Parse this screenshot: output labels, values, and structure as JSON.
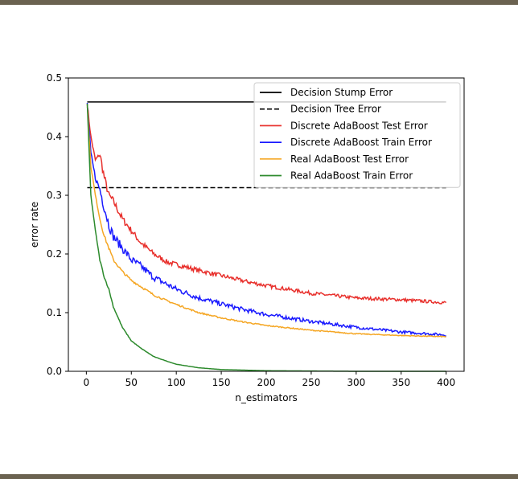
{
  "chart_data": {
    "type": "line",
    "xlabel": "n_estimators",
    "ylabel": "error rate",
    "xlim": [
      -20,
      420
    ],
    "ylim": [
      0.0,
      0.5
    ],
    "xticks": [
      0,
      50,
      100,
      150,
      200,
      250,
      300,
      350,
      400
    ],
    "xtick_labels": [
      "0",
      "50",
      "100",
      "150",
      "200",
      "250",
      "300",
      "350",
      "400"
    ],
    "yticks": [
      0.0,
      0.1,
      0.2,
      0.3,
      0.4,
      0.5
    ],
    "ytick_labels": [
      "0.0",
      "0.1",
      "0.2",
      "0.3",
      "0.4",
      "0.5"
    ],
    "grid": false,
    "legend_position": "upper-right",
    "series": [
      {
        "name": "Decision Stump Error",
        "color": "#000000",
        "style": "solid",
        "x": [
          1,
          400
        ],
        "y": [
          0.459,
          0.459
        ]
      },
      {
        "name": "Decision Tree Error",
        "color": "#000000",
        "style": "dashed",
        "x": [
          1,
          400
        ],
        "y": [
          0.313,
          0.313
        ]
      },
      {
        "name": "Discrete AdaBoost Test Error",
        "color": "#e8302c",
        "style": "solid",
        "x": [
          1,
          5,
          10,
          15,
          20,
          25,
          30,
          40,
          50,
          60,
          75,
          90,
          100,
          125,
          150,
          175,
          200,
          250,
          300,
          350,
          400
        ],
        "y": [
          0.455,
          0.4,
          0.36,
          0.37,
          0.33,
          0.3,
          0.29,
          0.26,
          0.24,
          0.22,
          0.2,
          0.186,
          0.182,
          0.172,
          0.163,
          0.154,
          0.146,
          0.133,
          0.125,
          0.122,
          0.117
        ]
      },
      {
        "name": "Discrete AdaBoost Train Error",
        "color": "#1a1aff",
        "style": "solid",
        "x": [
          1,
          5,
          10,
          15,
          20,
          25,
          30,
          40,
          50,
          60,
          75,
          90,
          100,
          125,
          150,
          175,
          200,
          250,
          300,
          350,
          400
        ],
        "y": [
          0.455,
          0.37,
          0.33,
          0.31,
          0.28,
          0.25,
          0.23,
          0.21,
          0.19,
          0.18,
          0.16,
          0.148,
          0.14,
          0.125,
          0.115,
          0.105,
          0.097,
          0.085,
          0.075,
          0.067,
          0.062
        ]
      },
      {
        "name": "Real AdaBoost Test Error",
        "color": "#f5a623",
        "style": "solid",
        "x": [
          1,
          5,
          10,
          15,
          20,
          25,
          30,
          40,
          50,
          60,
          75,
          90,
          100,
          125,
          150,
          175,
          200,
          250,
          300,
          350,
          400
        ],
        "y": [
          0.455,
          0.35,
          0.3,
          0.26,
          0.23,
          0.21,
          0.19,
          0.17,
          0.155,
          0.145,
          0.13,
          0.12,
          0.114,
          0.1,
          0.091,
          0.084,
          0.078,
          0.07,
          0.064,
          0.061,
          0.059
        ]
      },
      {
        "name": "Real AdaBoost Train Error",
        "color": "#2c8a2c",
        "style": "solid",
        "x": [
          1,
          5,
          10,
          15,
          20,
          25,
          30,
          40,
          50,
          60,
          75,
          90,
          100,
          125,
          150,
          175,
          200,
          250,
          300,
          350,
          400
        ],
        "y": [
          0.455,
          0.3,
          0.24,
          0.19,
          0.16,
          0.14,
          0.11,
          0.075,
          0.052,
          0.04,
          0.025,
          0.017,
          0.012,
          0.006,
          0.003,
          0.002,
          0.001,
          0.0005,
          0.0,
          0.0,
          0.0
        ]
      }
    ]
  }
}
